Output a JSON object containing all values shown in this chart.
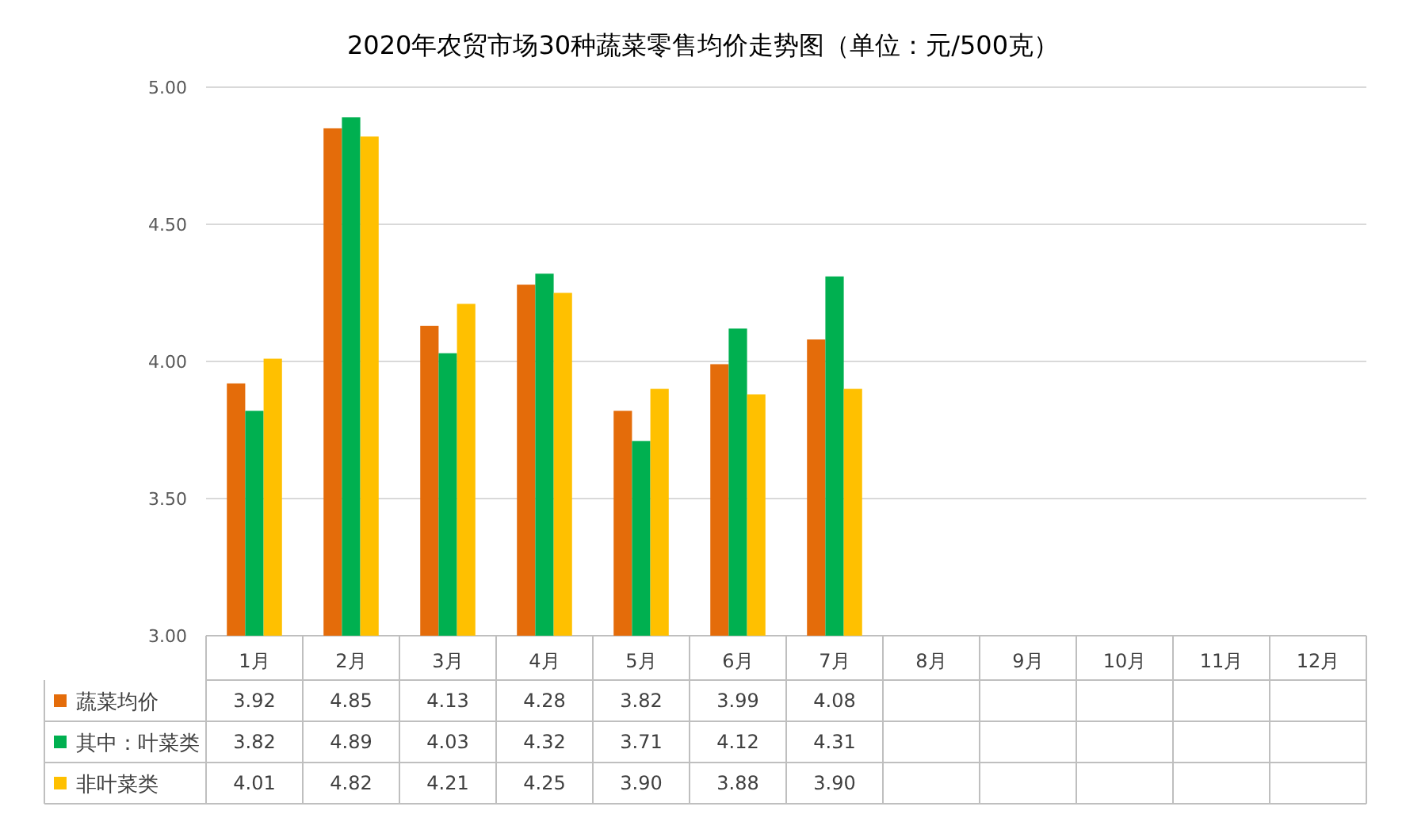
{
  "chart_data": {
    "type": "bar",
    "title": "2020年农贸市场30种蔬菜零售均价走势图（单位：元/500克）",
    "categories": [
      "1月",
      "2月",
      "3月",
      "4月",
      "5月",
      "6月",
      "7月",
      "8月",
      "9月",
      "10月",
      "11月",
      "12月"
    ],
    "series": [
      {
        "name": "蔬菜均价",
        "color": "#e46c0a",
        "values": [
          3.92,
          4.85,
          4.13,
          4.28,
          3.82,
          3.99,
          4.08,
          null,
          null,
          null,
          null,
          null
        ],
        "value_labels": [
          "3.92",
          "4.85",
          "4.13",
          "4.28",
          "3.82",
          "3.99",
          "4.08",
          null,
          null,
          null,
          null,
          null
        ]
      },
      {
        "name": "其中：叶菜类",
        "color": "#00b050",
        "values": [
          3.82,
          4.89,
          4.03,
          4.32,
          3.71,
          4.12,
          4.31,
          null,
          null,
          null,
          null,
          null
        ],
        "value_labels": [
          "3.82",
          "4.89",
          "4.03",
          "4.32",
          "3.71",
          "4.12",
          "4.31",
          null,
          null,
          null,
          null,
          null
        ]
      },
      {
        "name": "非叶菜类",
        "color": "#ffc000",
        "values": [
          4.01,
          4.82,
          4.21,
          4.25,
          3.9,
          3.88,
          3.9,
          null,
          null,
          null,
          null,
          null
        ],
        "value_labels": [
          "4.01",
          "4.82",
          "4.21",
          "4.25",
          "3.90",
          "3.88",
          "3.90",
          null,
          null,
          null,
          null,
          null
        ]
      }
    ],
    "ylim": [
      3,
      5
    ],
    "yticks": [
      {
        "value": 3,
        "label": "3.00"
      },
      {
        "value": 3.5,
        "label": "3.50"
      },
      {
        "value": 4,
        "label": "4.00"
      },
      {
        "value": 4.5,
        "label": "4.50"
      },
      {
        "value": 5,
        "label": "5.00"
      }
    ],
    "grid": "y",
    "legend": "bottom"
  }
}
